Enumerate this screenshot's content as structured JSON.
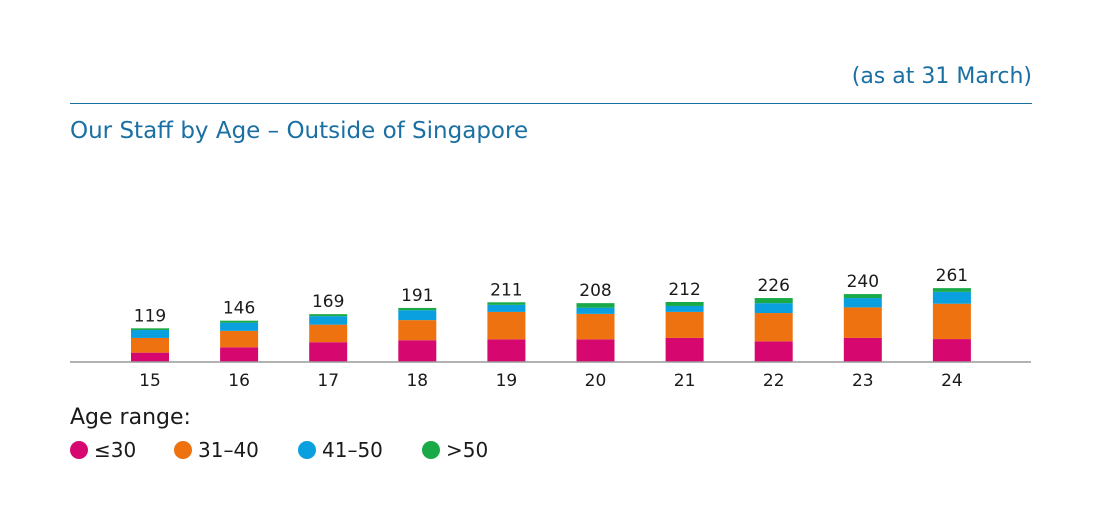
{
  "header": {
    "note": "(as at 31 March)",
    "title": "Our Staff by Age – Outside of Singapore"
  },
  "legend": {
    "title": "Age range:",
    "items": [
      {
        "label": "≤30",
        "color": "#d6086f"
      },
      {
        "label": "31–40",
        "color": "#ee7210"
      },
      {
        "label": "41–50",
        "color": "#0aa0df"
      },
      {
        "label": ">50",
        "color": "#1aa947"
      }
    ]
  },
  "chart_data": {
    "type": "bar",
    "stacked": true,
    "categories": [
      "15",
      "16",
      "17",
      "18",
      "19",
      "20",
      "21",
      "22",
      "23",
      "24"
    ],
    "totals": [
      119,
      146,
      169,
      191,
      211,
      208,
      212,
      226,
      240,
      261
    ],
    "series": [
      {
        "name": "≤30",
        "color": "#d6086f",
        "values": [
          33,
          52,
          70,
          77,
          80,
          80,
          85,
          73,
          85,
          81
        ]
      },
      {
        "name": "31–40",
        "color": "#ee7210",
        "values": [
          52,
          58,
          62,
          71,
          97,
          90,
          92,
          100,
          108,
          125
        ]
      },
      {
        "name": "41–50",
        "color": "#0aa0df",
        "values": [
          28,
          29,
          30,
          35,
          25,
          22,
          21,
          35,
          33,
          42
        ]
      },
      {
        "name": ">50",
        "color": "#1aa947",
        "values": [
          6,
          7,
          7,
          8,
          9,
          16,
          14,
          18,
          14,
          13
        ]
      }
    ],
    "ylim": [
      0,
      300
    ],
    "grid": false,
    "legend_position": "bottom-left"
  }
}
